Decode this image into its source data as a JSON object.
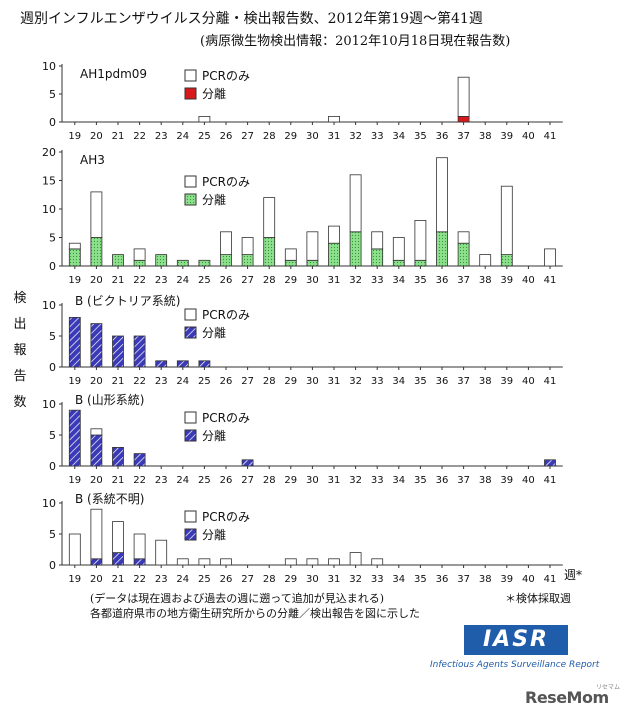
{
  "header": {
    "title": "週別インフルエンザウイルス分離・検出報告数、2012年第19週～第41週",
    "subtitle": "(病原微生物検出情報：2012年10月18日現在報告数)"
  },
  "y_axis_label": "検出報告数",
  "week_suffix": "週",
  "week_note_mark": "*",
  "legend_labels": {
    "pcr": "PCRのみ",
    "isolation": "分離"
  },
  "colors": {
    "isolation_ah1": "#d7191c",
    "isolation_ah3": "#8ee08e",
    "isolation_b": "#2b2b9e",
    "pcr": "#ffffff",
    "axis": "#333333"
  },
  "chart_data": [
    {
      "type": "bar",
      "stacked": true,
      "title": "AH1pdm09",
      "categories": [
        "19",
        "20",
        "21",
        "22",
        "23",
        "24",
        "25",
        "26",
        "27",
        "28",
        "29",
        "30",
        "31",
        "32",
        "33",
        "34",
        "35",
        "36",
        "37",
        "38",
        "39",
        "40",
        "41"
      ],
      "ylim": [
        0,
        10
      ],
      "yticks": [
        0,
        5,
        10
      ],
      "series": [
        {
          "name": "分離",
          "values": [
            0,
            0,
            0,
            0,
            0,
            0,
            0,
            0,
            0,
            0,
            0,
            0,
            0,
            0,
            0,
            0,
            0,
            0,
            1,
            0,
            0,
            0,
            0
          ]
        },
        {
          "name": "PCRのみ",
          "values": [
            0,
            0,
            0,
            0,
            0,
            0,
            1,
            0,
            0,
            0,
            0,
            0,
            1,
            0,
            0,
            0,
            0,
            0,
            7,
            0,
            0,
            0,
            0
          ]
        }
      ]
    },
    {
      "type": "bar",
      "stacked": true,
      "title": "AH3",
      "categories": [
        "19",
        "20",
        "21",
        "22",
        "23",
        "24",
        "25",
        "26",
        "27",
        "28",
        "29",
        "30",
        "31",
        "32",
        "33",
        "34",
        "35",
        "36",
        "37",
        "38",
        "39",
        "40",
        "41"
      ],
      "ylim": [
        0,
        20
      ],
      "yticks": [
        0,
        5,
        10,
        15,
        20
      ],
      "series": [
        {
          "name": "分離",
          "values": [
            3,
            5,
            2,
            1,
            2,
            1,
            1,
            2,
            2,
            5,
            1,
            1,
            4,
            6,
            3,
            1,
            1,
            6,
            4,
            0,
            2,
            0,
            0
          ]
        },
        {
          "name": "PCRのみ",
          "values": [
            1,
            8,
            0,
            2,
            0,
            0,
            0,
            4,
            3,
            7,
            2,
            5,
            3,
            10,
            3,
            4,
            7,
            13,
            2,
            2,
            12,
            0,
            3
          ]
        }
      ]
    },
    {
      "type": "bar",
      "stacked": true,
      "title": "B (ビクトリア系統)",
      "categories": [
        "19",
        "20",
        "21",
        "22",
        "23",
        "24",
        "25",
        "26",
        "27",
        "28",
        "29",
        "30",
        "31",
        "32",
        "33",
        "34",
        "35",
        "36",
        "37",
        "38",
        "39",
        "40",
        "41"
      ],
      "ylim": [
        0,
        10
      ],
      "yticks": [
        0,
        5,
        10
      ],
      "series": [
        {
          "name": "分離",
          "values": [
            8,
            7,
            5,
            5,
            1,
            1,
            1,
            0,
            0,
            0,
            0,
            0,
            0,
            0,
            0,
            0,
            0,
            0,
            0,
            0,
            0,
            0,
            0
          ]
        },
        {
          "name": "PCRのみ",
          "values": [
            0,
            0,
            0,
            0,
            0,
            0,
            0,
            0,
            0,
            0,
            0,
            0,
            0,
            0,
            0,
            0,
            0,
            0,
            0,
            0,
            0,
            0,
            0
          ]
        }
      ]
    },
    {
      "type": "bar",
      "stacked": true,
      "title": "B (山形系統)",
      "categories": [
        "19",
        "20",
        "21",
        "22",
        "23",
        "24",
        "25",
        "26",
        "27",
        "28",
        "29",
        "30",
        "31",
        "32",
        "33",
        "34",
        "35",
        "36",
        "37",
        "38",
        "39",
        "40",
        "41"
      ],
      "ylim": [
        0,
        10
      ],
      "yticks": [
        0,
        5,
        10
      ],
      "series": [
        {
          "name": "分離",
          "values": [
            9,
            5,
            3,
            2,
            0,
            0,
            0,
            0,
            1,
            0,
            0,
            0,
            0,
            0,
            0,
            0,
            0,
            0,
            0,
            0,
            0,
            0,
            1
          ]
        },
        {
          "name": "PCRのみ",
          "values": [
            0,
            1,
            0,
            0,
            0,
            0,
            0,
            0,
            0,
            0,
            0,
            0,
            0,
            0,
            0,
            0,
            0,
            0,
            0,
            0,
            0,
            0,
            0
          ]
        }
      ]
    },
    {
      "type": "bar",
      "stacked": true,
      "title": "B (系統不明)",
      "categories": [
        "19",
        "20",
        "21",
        "22",
        "23",
        "24",
        "25",
        "26",
        "27",
        "28",
        "29",
        "30",
        "31",
        "32",
        "33",
        "34",
        "35",
        "36",
        "37",
        "38",
        "39",
        "40",
        "41"
      ],
      "ylim": [
        0,
        10
      ],
      "yticks": [
        0,
        5,
        10
      ],
      "series": [
        {
          "name": "分離",
          "values": [
            0,
            1,
            2,
            1,
            0,
            0,
            0,
            0,
            0,
            0,
            0,
            0,
            0,
            0,
            0,
            0,
            0,
            0,
            0,
            0,
            0,
            0,
            0
          ]
        },
        {
          "name": "PCRのみ",
          "values": [
            5,
            8,
            5,
            4,
            4,
            1,
            1,
            1,
            0,
            0,
            1,
            1,
            1,
            2,
            1,
            0,
            0,
            0,
            0,
            0,
            0,
            0,
            0
          ]
        }
      ]
    }
  ],
  "footer": {
    "note1": "(データは現在週および過去の週に遡って追加が見込まれる)",
    "note2": "各都道府県市の地方衛生研究所からの分離／検出報告を図に示した",
    "week_note": "＊検体採取週",
    "logo_text": "IASR",
    "logo_subtitle": "Infectious Agents Surveillance Report",
    "watermark": "ReseMom",
    "watermark_kana": "リセマム"
  }
}
